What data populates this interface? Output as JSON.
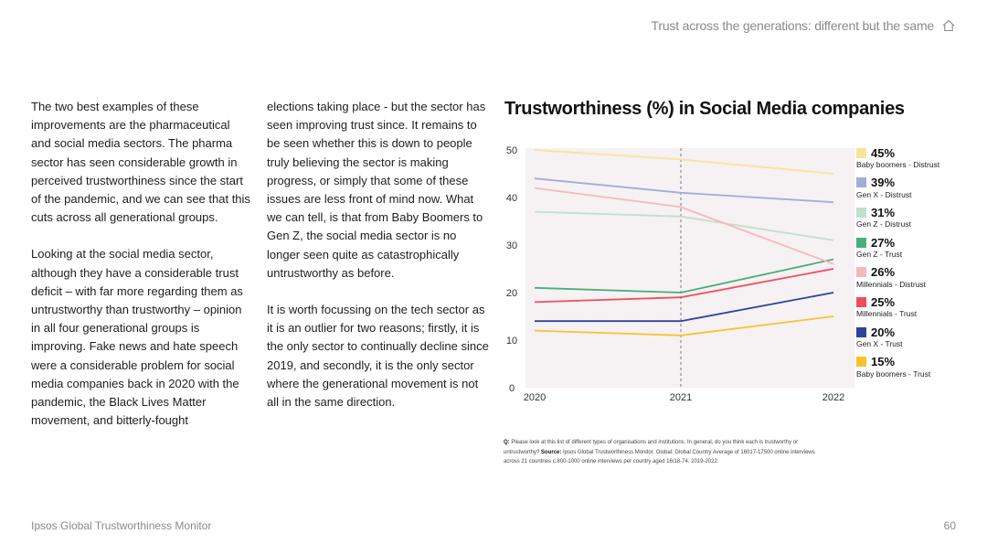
{
  "header": {
    "title": "Trust across the generations: different but the same",
    "icon": "home-icon"
  },
  "body_text": {
    "col1_p1": "The two best examples of these improvements are the pharmaceutical and social media sectors. The pharma sector has seen considerable growth in perceived trustworthiness since the start of the pandemic, and we can see that this cuts across all generational groups.",
    "col1_p2": "Looking at the social media sector, although they have a considerable trust deficit – with far more regarding them as untrustworthy than trustworthy – opinion in all four generational groups is improving. Fake news and hate speech were a considerable problem for social media companies back in 2020 with the pandemic, the Black Lives Matter movement, and bitterly-fought",
    "col2_p1": "elections taking place - but the sector has seen improving trust since. It remains to be seen whether this is down to people truly believing the sector is making progress, or simply that some of these issues are less front of mind now. What we can tell, is that from Baby Boomers to Gen Z, the social media sector is no longer seen quite as catastrophically untrustworthy as before.",
    "col2_p2": "It is worth focussing on the tech sector as it is an outlier for two reasons; firstly, it is the only sector to continually decline since 2019, and secondly, it is the only sector where the generational movement is not all in the same direction."
  },
  "footnote": {
    "q_label": "Q:",
    "question": "Please look at this list of different types of organisations and institutions. In general, do you think each is trustworthy or untrustworthy?",
    "source_label": "Source:",
    "source": "Ipsos Global Trustworthiness Monitor. Global: Global Country Average of 16017-17500 online interviews across 21 countries c.800-1000 online interviews per country aged 16/18-74. 2019-2022."
  },
  "footer": {
    "left": "Ipsos Global Trustworthiness Monitor",
    "page": "60"
  },
  "chart_data": {
    "type": "line",
    "title": "Trustworthiness (%) in Social Media companies",
    "x": [
      "2020",
      "2021",
      "2022"
    ],
    "ylim": [
      0,
      50
    ],
    "yticks": [
      "0",
      "10",
      "20",
      "30",
      "40",
      "50"
    ],
    "grid": false,
    "reference_line_at": "2021",
    "legend_position": "right",
    "series": [
      {
        "name": "Baby boomers - Distrust",
        "values": [
          50,
          48,
          45
        ],
        "color": "#f8e49a",
        "label": "45%"
      },
      {
        "name": "Gen X - Distrust",
        "values": [
          44,
          41,
          39
        ],
        "color": "#a3acd9",
        "label": "39%"
      },
      {
        "name": "Gen Z - Distrust",
        "values": [
          37,
          36,
          31
        ],
        "color": "#bfe0cd",
        "label": "31%"
      },
      {
        "name": "Gen Z - Trust",
        "values": [
          21,
          20,
          27
        ],
        "color": "#4cae7c",
        "label": "27%"
      },
      {
        "name": "Millennials - Distrust",
        "values": [
          42,
          38,
          26
        ],
        "color": "#f6b7bd",
        "label": "26%"
      },
      {
        "name": "Millennials - Trust",
        "values": [
          18,
          19,
          25
        ],
        "color": "#ef4e5d",
        "label": "25%"
      },
      {
        "name": "Gen X - Trust",
        "values": [
          14,
          14,
          20
        ],
        "color": "#2e4597",
        "label": "20%"
      },
      {
        "name": "Baby boomers - Trust",
        "values": [
          12,
          11,
          15
        ],
        "color": "#f7c42f",
        "label": "15%"
      }
    ],
    "plot_background": "#f6f1f3"
  }
}
